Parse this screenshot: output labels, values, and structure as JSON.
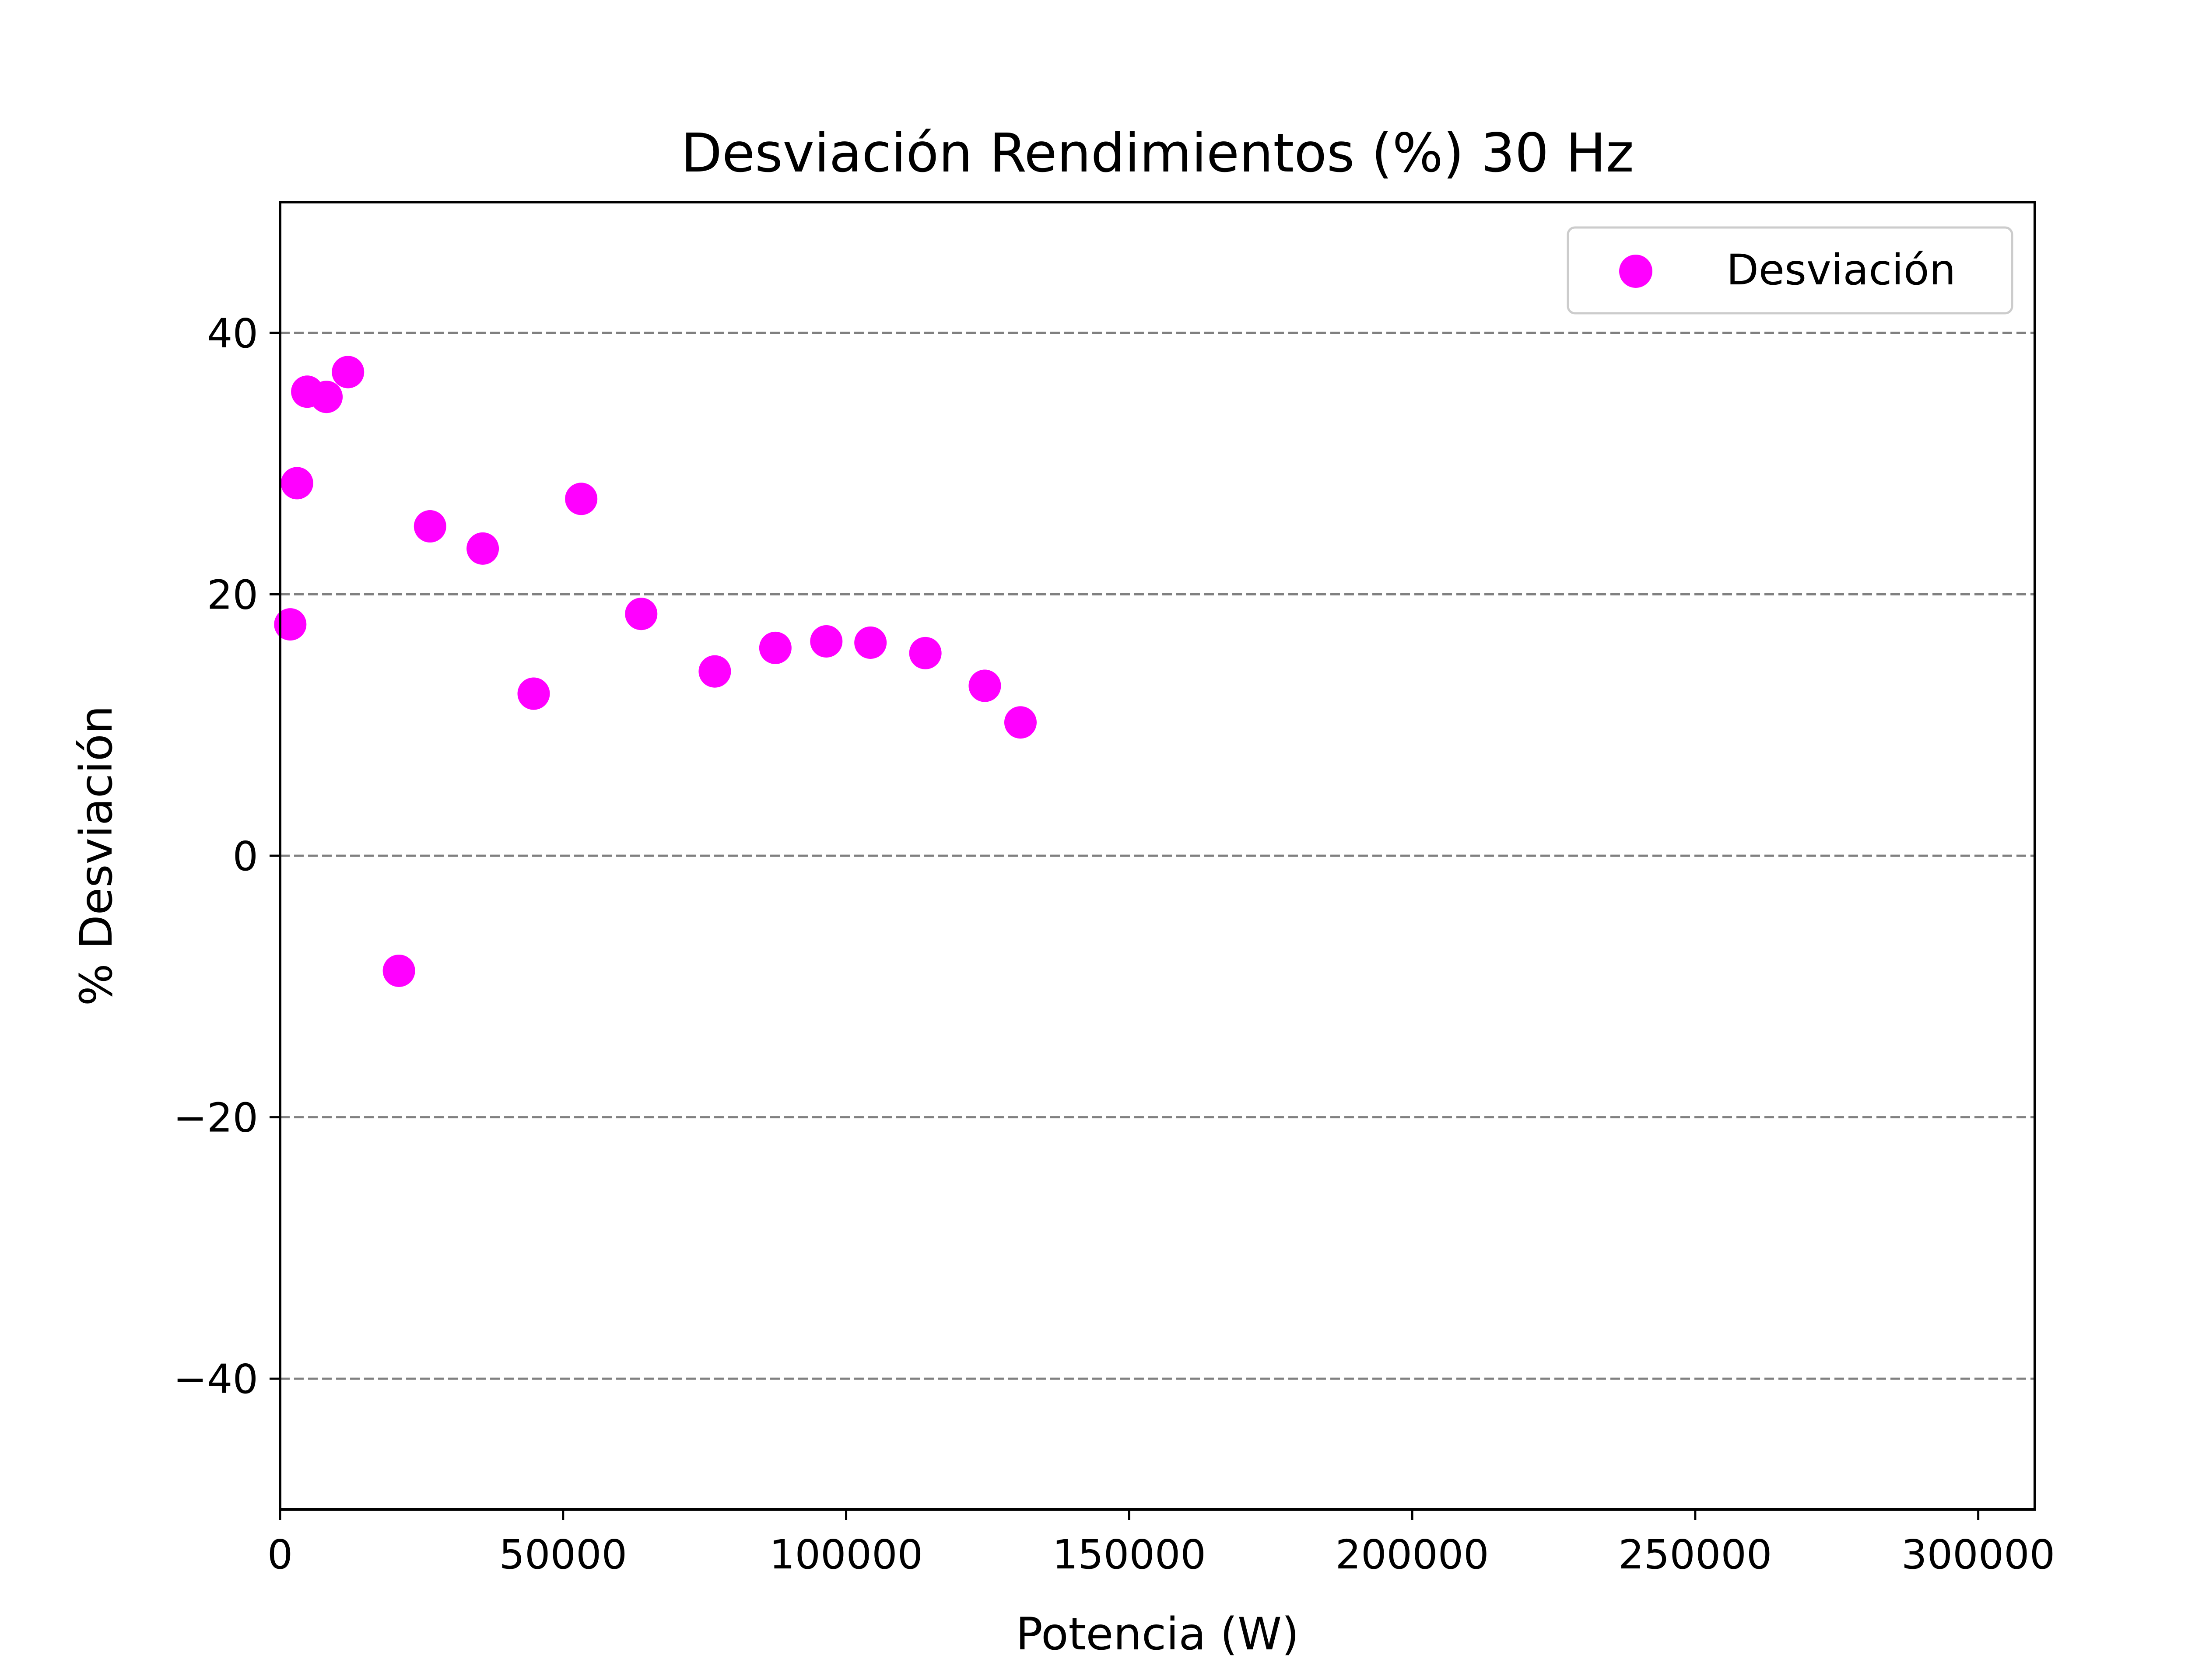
{
  "chart_data": {
    "type": "scatter",
    "title": "Desviación Rendimientos (%) 30 Hz",
    "xlabel": "Potencia (W)",
    "ylabel": "% Desviación",
    "xlim": [
      0,
      310000
    ],
    "ylim": [
      -50,
      50
    ],
    "xticks": [
      0,
      50000,
      100000,
      150000,
      200000,
      250000,
      300000
    ],
    "xtick_labels": [
      "0",
      "50000",
      "100000",
      "150000",
      "200000",
      "250000",
      "300000"
    ],
    "yticks": [
      -40,
      -20,
      0,
      20,
      40
    ],
    "ytick_labels": [
      "−40",
      "−20",
      "0",
      "20",
      "40"
    ],
    "grid": {
      "axis": "y",
      "style": "dashed",
      "color": "#808080"
    },
    "legend": {
      "position": "top-right"
    },
    "series": [
      {
        "name": "Desviación",
        "color": "#ff00ff",
        "x": [
          1800,
          3000,
          4800,
          8200,
          12000,
          21000,
          26500,
          35800,
          44800,
          53200,
          63800,
          76800,
          87500,
          96500,
          104300,
          114000,
          124500,
          130800
        ],
        "y": [
          17.7,
          28.5,
          35.5,
          35.1,
          37.0,
          -8.8,
          25.2,
          23.5,
          12.4,
          27.3,
          18.5,
          14.1,
          15.9,
          16.4,
          16.3,
          15.5,
          13.0,
          10.2
        ]
      }
    ]
  }
}
